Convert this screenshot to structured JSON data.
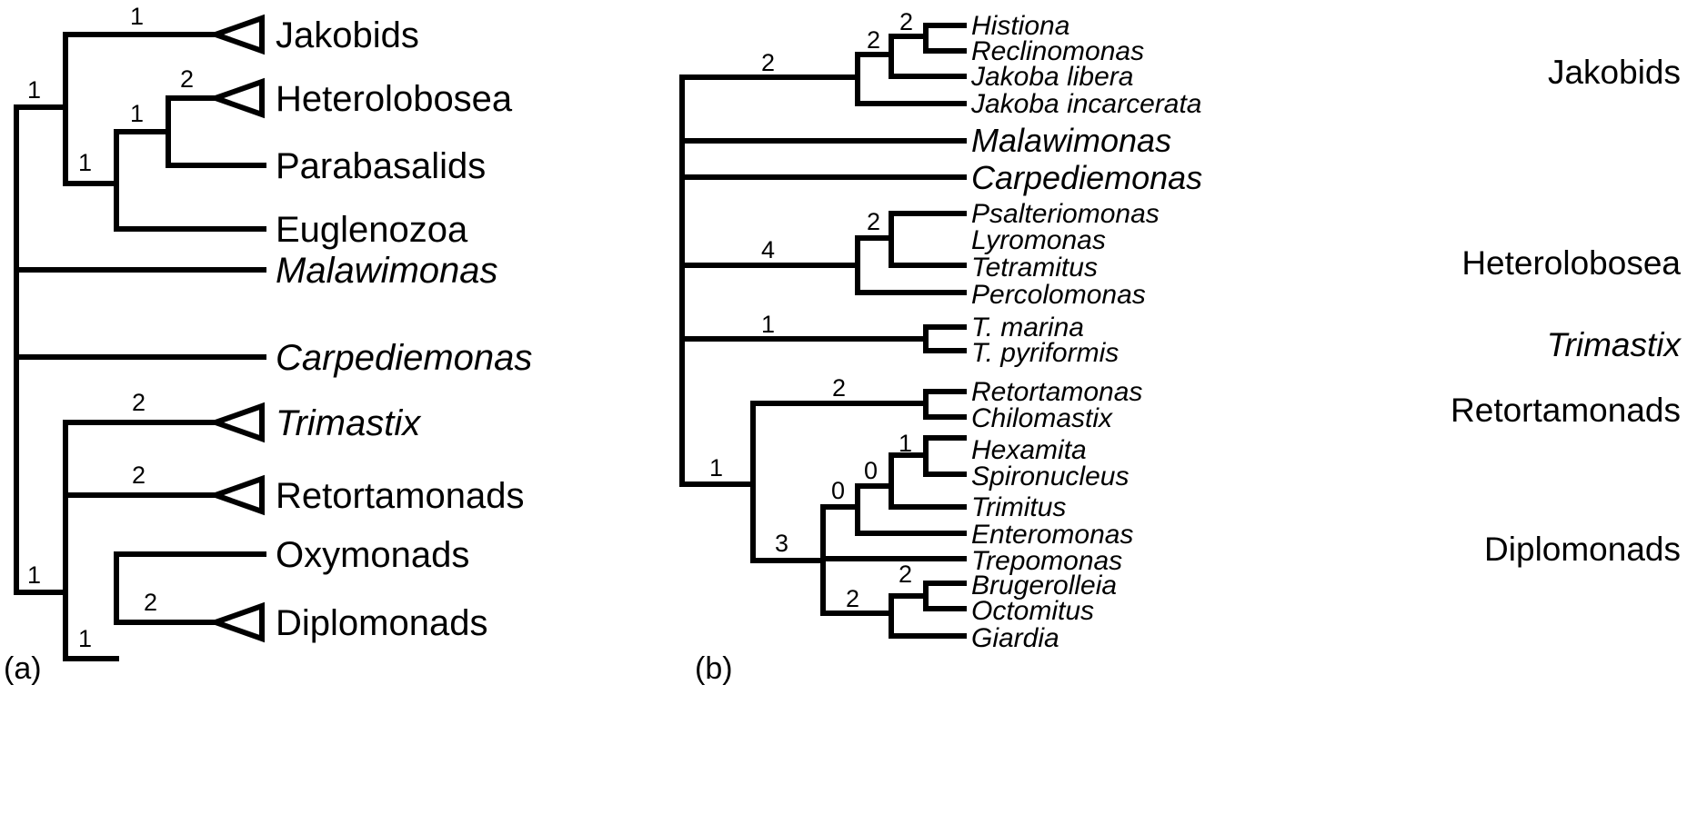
{
  "panels": {
    "a": {
      "label": "(a)",
      "taxa": {
        "jakobids": "Jakobids",
        "heterolobosea": "Heterolobosea",
        "parabasalids": "Parabasalids",
        "euglenozoa": "Euglenozoa",
        "malawimonas": "Malawimonas",
        "carpediemonas": "Carpediemonas",
        "trimastix": "Trimastix",
        "retortamonads": "Retortamonads",
        "oxymonads": "Oxymonads",
        "diplomonads": "Diplomonads"
      },
      "supports": {
        "root_upper": "1",
        "jakobids": "1",
        "het_para_eug": "1",
        "het_para": "1",
        "heterolobosea": "2",
        "lower_clade": "1",
        "trimastix": "2",
        "retortamonads": "2",
        "oxy_diplo": "1",
        "diplomonads": "2"
      }
    },
    "b": {
      "label": "(b)",
      "taxa": {
        "histiona": "Histiona",
        "reclinomonas": "Reclinomonas",
        "jakoba_libera": "Jakoba libera",
        "jakoba_incarcerata": "Jakoba incarcerata",
        "malawimonas": "Malawimonas",
        "carpediemonas": "Carpediemonas",
        "psalteriomonas": "Psalteriomonas",
        "lyromonas": "Lyromonas",
        "tetramitus": "Tetramitus",
        "percolomonas": "Percolomonas",
        "t_marina": "T. marina",
        "t_pyriformis": "T. pyriformis",
        "retortamonas": "Retortamonas",
        "chilomastix": "Chilomastix",
        "hexamita": "Hexamita",
        "spironucleus": "Spironucleus",
        "trimitus": "Trimitus",
        "enteromonas": "Enteromonas",
        "trepomonas": "Trepomonas",
        "brugerolleia": "Brugerolleia",
        "octomitus": "Octomitus",
        "giardia": "Giardia"
      },
      "groups": {
        "jakobids": "Jakobids",
        "heterolobosea": "Heterolobosea",
        "trimastix": "Trimastix",
        "retortamonads": "Retortamonads",
        "diplomonads": "Diplomonads"
      },
      "supports": {
        "jakobid_stem": "2",
        "jakobid_inner": "2",
        "histiona_reclino": "2",
        "hetero_stem": "4",
        "hetero_inner": "2",
        "trimastix_stem": "1",
        "fornicata": "1",
        "retort_stem": "2",
        "diplo_stem": "3",
        "diplo_a": "0",
        "diplo_b": "0",
        "hexa_spiro": "1",
        "giardiinae": "2",
        "brug_octo": "2"
      }
    }
  }
}
